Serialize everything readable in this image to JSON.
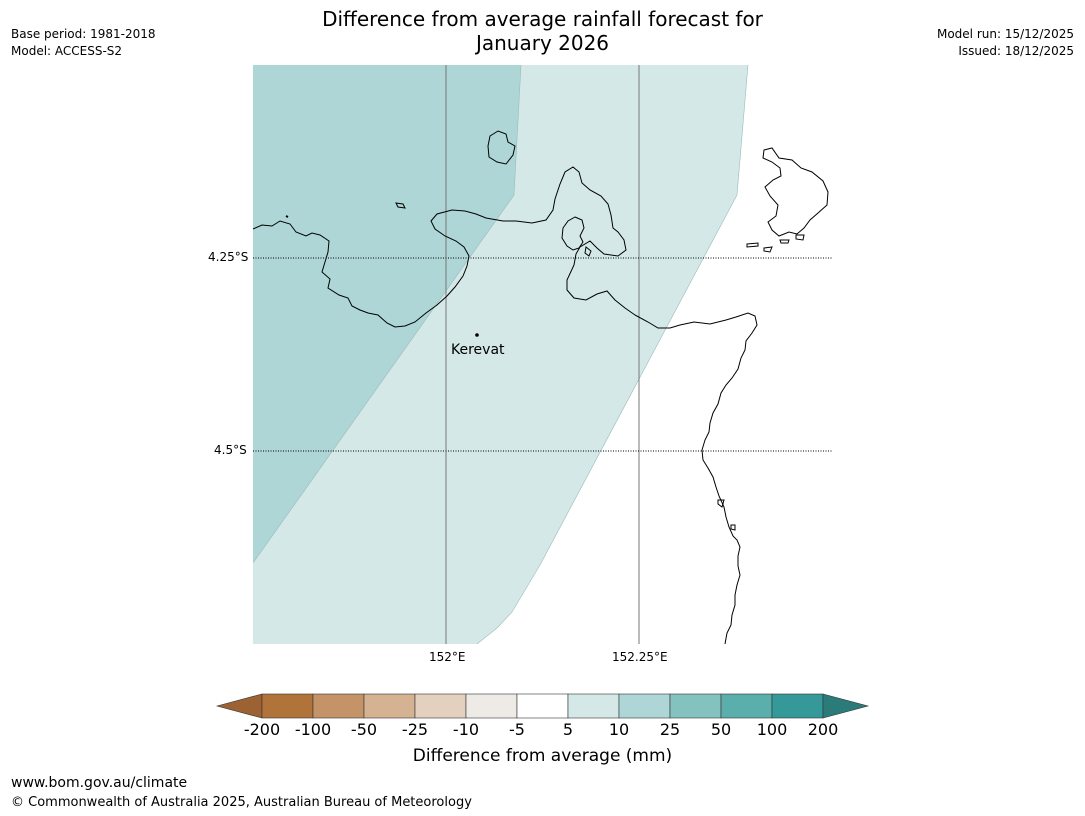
{
  "title_line1": "Difference from average rainfall forecast for",
  "title_line2": "January 2026",
  "meta_left": {
    "base_period": "Base period: 1981-2018",
    "model": "Model: ACCESS-S2"
  },
  "meta_right": {
    "model_run": "Model run: 15/12/2025",
    "issued": "Issued: 18/12/2025"
  },
  "latitudes": [
    "4.25°S",
    "4.5°S"
  ],
  "longitudes": [
    "152°E",
    "152.25°E"
  ],
  "place": "Kerevat",
  "colorbar": {
    "label": "Difference from average (mm)",
    "ticks": [
      "-200",
      "-100",
      "-50",
      "-25",
      "-10",
      "-5",
      "5",
      "10",
      "25",
      "50",
      "100",
      "200"
    ],
    "colors": [
      "#9c6233",
      "#b0733a",
      "#c49468",
      "#d5b291",
      "#e4d0bf",
      "#eeeae6",
      "#ffffff",
      "#d4e8e8",
      "#aed6d6",
      "#84c2c0",
      "#5aaeac",
      "#35999a",
      "#2b7b7a"
    ]
  },
  "footer": {
    "url": "www.bom.gov.au/climate",
    "copyright": "© Commonwealth of Australia 2025, Australian Bureau of Meteorology"
  }
}
